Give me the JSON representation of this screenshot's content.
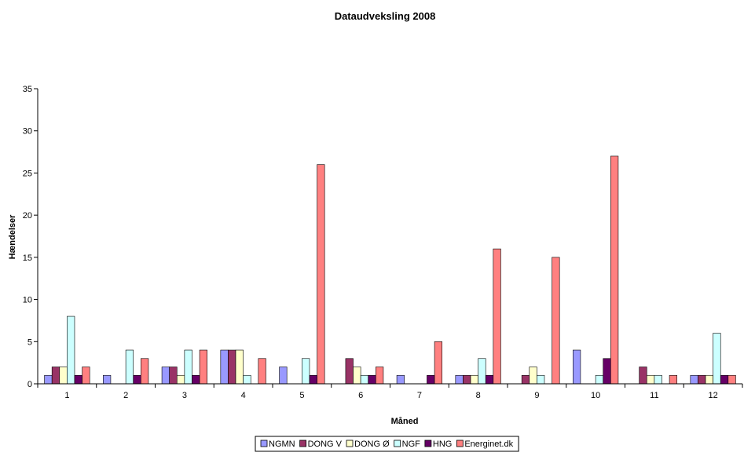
{
  "chart_data": {
    "type": "bar",
    "title": "Dataudveksling 2008",
    "xlabel": "Måned",
    "ylabel": "Hændelser",
    "ylim": [
      0,
      35
    ],
    "yticks": [
      0,
      5,
      10,
      15,
      20,
      25,
      30,
      35
    ],
    "grid": false,
    "legend_position": "bottom",
    "categories": [
      "1",
      "2",
      "3",
      "4",
      "5",
      "6",
      "7",
      "8",
      "9",
      "10",
      "11",
      "12"
    ],
    "series": [
      {
        "name": "NGMN",
        "color": "#9999FF",
        "values": [
          1,
          1,
          2,
          4,
          2,
          0,
          1,
          1,
          0,
          4,
          0,
          1
        ]
      },
      {
        "name": "DONG V",
        "color": "#993366",
        "values": [
          2,
          0,
          2,
          4,
          0,
          3,
          0,
          1,
          1,
          0,
          2,
          1
        ]
      },
      {
        "name": "DONG Ø",
        "color": "#FFFFCC",
        "values": [
          2,
          0,
          1,
          4,
          0,
          2,
          0,
          1,
          2,
          0,
          1,
          1
        ]
      },
      {
        "name": "NGF",
        "color": "#CCFFFF",
        "values": [
          8,
          4,
          4,
          1,
          3,
          1,
          0,
          3,
          1,
          1,
          1,
          6
        ]
      },
      {
        "name": "HNG",
        "color": "#660066",
        "values": [
          1,
          1,
          1,
          0,
          1,
          1,
          1,
          1,
          0,
          3,
          0,
          1
        ]
      },
      {
        "name": "Energinet.dk",
        "color": "#FF8080",
        "values": [
          2,
          3,
          4,
          3,
          26,
          2,
          5,
          16,
          15,
          27,
          1,
          1
        ]
      }
    ]
  }
}
